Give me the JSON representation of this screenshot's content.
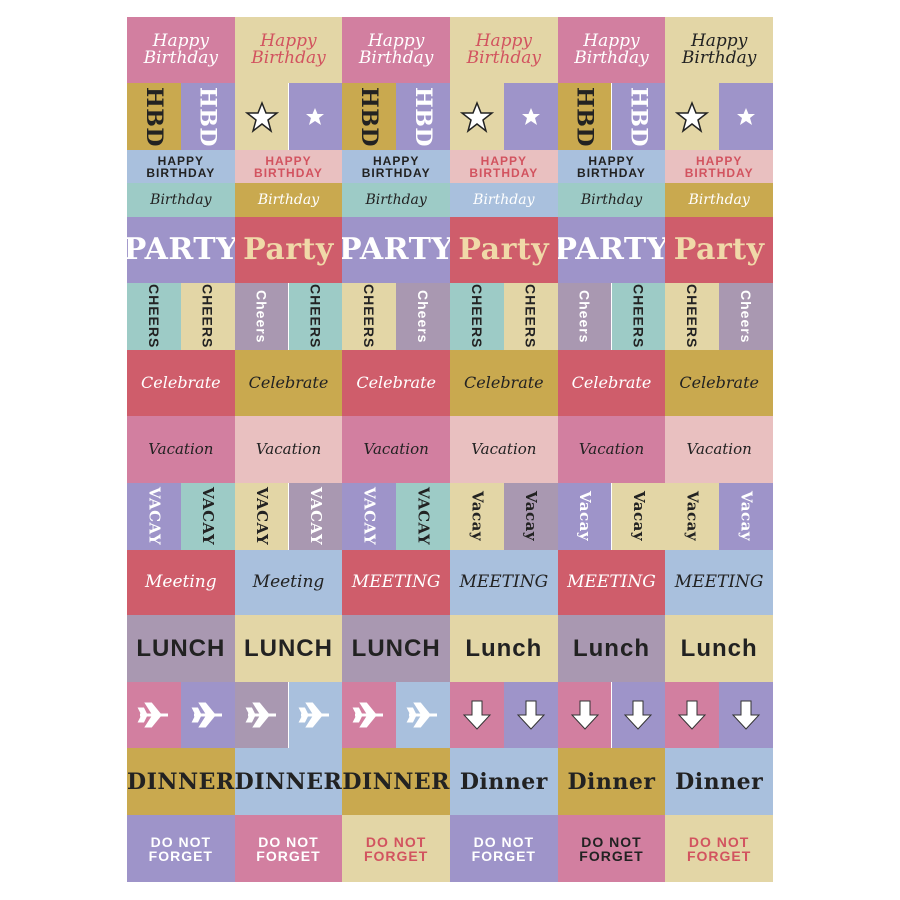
{
  "stickers": {
    "happy_birthday": [
      "Happy Birthday",
      "Happy Birthday",
      "Happy Birthday",
      "Happy Birthday",
      "Happy Birthday",
      "Happy Birthday"
    ],
    "hbd": [
      [
        "HBD",
        "HBD"
      ],
      [
        "HBD",
        "HBD"
      ],
      [
        "HBD",
        "HBD"
      ]
    ],
    "happy_birthday_caps": [
      "HAPPY BIRTHDAY",
      "HAPPY BIRTHDAY",
      "HAPPY BIRTHDAY",
      "HAPPY BIRTHDAY",
      "HAPPY BIRTHDAY",
      "HAPPY BIRTHDAY"
    ],
    "birthday": [
      "Birthday",
      "Birthday",
      "Birthday",
      "Birthday",
      "Birthday",
      "Birthday"
    ],
    "party": [
      "PARTY",
      "Party",
      "PARTY",
      "Party",
      "PARTY",
      "Party"
    ],
    "cheers": [
      [
        "CHEERS",
        "CHEERS"
      ],
      [
        "Cheers",
        "CHEERS"
      ],
      [
        "CHEERS",
        "Cheers"
      ],
      [
        "CHEERS",
        "CHEERS"
      ],
      [
        "Cheers",
        "CHEERS"
      ],
      [
        "CHEERS",
        "Cheers"
      ]
    ],
    "celebrate": [
      "Celebrate",
      "Celebrate",
      "Celebrate",
      "Celebrate",
      "Celebrate",
      "Celebrate"
    ],
    "vacation": [
      "Vacation",
      "Vacation",
      "Vacation",
      "Vacation",
      "Vacation",
      "Vacation"
    ],
    "vacay": [
      [
        "VACAY",
        "VACAY"
      ],
      [
        "VACAY",
        "VACAY"
      ],
      [
        "VACAY",
        "VACAY"
      ],
      [
        "Vacay",
        "Vacay"
      ],
      [
        "Vacay",
        "Vacay"
      ],
      [
        "Vacay",
        "Vacay"
      ]
    ],
    "meeting": [
      "Meeting",
      "Meeting",
      "MEETING",
      "MEETING",
      "MEETING",
      "MEETING"
    ],
    "lunch": [
      "LUNCH",
      "LUNCH",
      "LUNCH",
      "Lunch",
      "Lunch",
      "Lunch"
    ],
    "dinner": [
      "DINNER",
      "DINNER",
      "DINNER",
      "Dinner",
      "Dinner",
      "Dinner"
    ],
    "do_not_forget": [
      "DO NOT FORGET",
      "DO NOT FORGET",
      "DO NOT FORGET",
      "DO NOT FORGET",
      "DO NOT FORGET",
      "DO NOT FORGET"
    ]
  }
}
